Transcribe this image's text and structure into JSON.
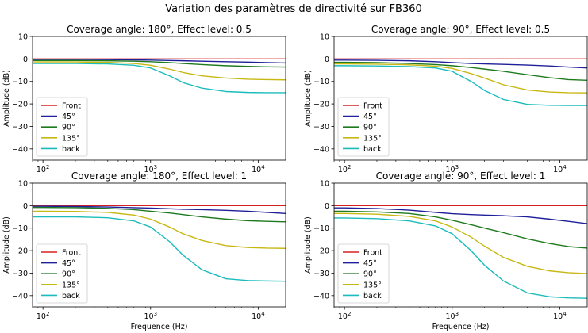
{
  "figure": {
    "suptitle": "Variation des paramètres de directivité sur FB360"
  },
  "chart_data": [
    {
      "type": "line",
      "title": "Coverage angle: 180°, Effect level: 0.5",
      "xlabel": "",
      "ylabel": "Amplitude (dB)",
      "xscale": "log",
      "xlim": [
        80,
        18000
      ],
      "ylim": [
        -45,
        10
      ],
      "yticks": [
        "10",
        "0",
        "−10",
        "−20",
        "−30",
        "−40"
      ],
      "xticks": [
        "10^2",
        "10^3",
        "10^4"
      ],
      "grid": false,
      "legend": "lower-left",
      "x": [
        80,
        100,
        200,
        400,
        700,
        1000,
        1500,
        2000,
        3000,
        5000,
        8000,
        12000,
        18000
      ],
      "series": [
        {
          "name": "Front",
          "color": "#d62020",
          "values": [
            0,
            0,
            0,
            0,
            0,
            0,
            0,
            0,
            0,
            0,
            0,
            0,
            0
          ]
        },
        {
          "name": "45°",
          "color": "#1f1f9a",
          "values": [
            -0.2,
            -0.2,
            -0.2,
            -0.3,
            -0.4,
            -0.5,
            -0.7,
            -0.8,
            -1.0,
            -1.2,
            -1.4,
            -1.6,
            -1.8
          ]
        },
        {
          "name": "90°",
          "color": "#1e7a1e",
          "values": [
            -0.7,
            -0.7,
            -0.7,
            -0.8,
            -1.0,
            -1.2,
            -1.6,
            -2.0,
            -2.5,
            -3.0,
            -3.3,
            -3.5,
            -3.6
          ]
        },
        {
          "name": "135°",
          "color": "#c8b814",
          "values": [
            -1.3,
            -1.3,
            -1.3,
            -1.5,
            -2.0,
            -2.8,
            -4.5,
            -6.0,
            -7.5,
            -8.5,
            -9.0,
            -9.2,
            -9.3
          ]
        },
        {
          "name": "back",
          "color": "#1cbcbc",
          "values": [
            -2.0,
            -2.0,
            -2.0,
            -2.2,
            -2.8,
            -4.0,
            -7.5,
            -10.5,
            -13.0,
            -14.5,
            -14.9,
            -15.0,
            -15.0
          ]
        }
      ]
    },
    {
      "type": "line",
      "title": "Coverage angle: 90°, Effect level: 0.5",
      "xlabel": "",
      "ylabel": "Amplitude (dB)",
      "xscale": "log",
      "xlim": [
        80,
        18000
      ],
      "ylim": [
        -45,
        10
      ],
      "yticks": [
        "10",
        "0",
        "−10",
        "−20",
        "−30",
        "−40"
      ],
      "xticks": [
        "10^2",
        "10^3",
        "10^4"
      ],
      "grid": false,
      "legend": "lower-left",
      "x": [
        80,
        100,
        200,
        400,
        700,
        1000,
        1500,
        2000,
        3000,
        5000,
        8000,
        12000,
        18000
      ],
      "series": [
        {
          "name": "Front",
          "color": "#d62020",
          "values": [
            0,
            0,
            0,
            0,
            0,
            0,
            0,
            0,
            0,
            0,
            0,
            0,
            0
          ]
        },
        {
          "name": "45°",
          "color": "#1f1f9a",
          "values": [
            -0.5,
            -0.5,
            -0.6,
            -0.8,
            -1.2,
            -1.6,
            -2.0,
            -2.2,
            -2.4,
            -2.7,
            -3.1,
            -3.6,
            -4.0
          ]
        },
        {
          "name": "90°",
          "color": "#1e7a1e",
          "values": [
            -1.5,
            -1.5,
            -1.6,
            -2.0,
            -2.5,
            -3.0,
            -3.8,
            -4.5,
            -5.5,
            -7.0,
            -8.3,
            -9.2,
            -9.5
          ]
        },
        {
          "name": "135°",
          "color": "#c8b814",
          "values": [
            -2.2,
            -2.2,
            -2.3,
            -2.6,
            -3.2,
            -4.2,
            -6.5,
            -8.5,
            -11.5,
            -13.8,
            -14.7,
            -15.0,
            -15.1
          ]
        },
        {
          "name": "back",
          "color": "#1cbcbc",
          "values": [
            -3.0,
            -3.0,
            -3.1,
            -3.4,
            -4.0,
            -5.5,
            -10.0,
            -14.0,
            -18.0,
            -20.2,
            -20.6,
            -20.7,
            -20.7
          ]
        }
      ]
    },
    {
      "type": "line",
      "title": "Coverage angle: 180°, Effect level: 1",
      "xlabel": "Frequence (Hz)",
      "ylabel": "Amplitude (dB)",
      "xscale": "log",
      "xlim": [
        80,
        18000
      ],
      "ylim": [
        -45,
        10
      ],
      "yticks": [
        "10",
        "0",
        "−10",
        "−20",
        "−30",
        "−40"
      ],
      "xticks": [
        "10^2",
        "10^3",
        "10^4"
      ],
      "grid": false,
      "legend": "lower-left",
      "x": [
        80,
        100,
        200,
        400,
        700,
        1000,
        1500,
        2000,
        3000,
        5000,
        8000,
        12000,
        18000
      ],
      "series": [
        {
          "name": "Front",
          "color": "#d62020",
          "values": [
            0,
            0,
            0,
            0,
            0,
            0,
            0,
            0,
            0,
            0,
            0,
            0,
            0
          ]
        },
        {
          "name": "45°",
          "color": "#1f1f9a",
          "values": [
            -0.3,
            -0.3,
            -0.4,
            -0.6,
            -0.9,
            -1.1,
            -1.4,
            -1.6,
            -1.8,
            -2.1,
            -2.5,
            -3.0,
            -3.5
          ]
        },
        {
          "name": "90°",
          "color": "#1e7a1e",
          "values": [
            -0.8,
            -0.8,
            -0.9,
            -1.2,
            -1.8,
            -2.5,
            -3.3,
            -4.0,
            -5.0,
            -6.0,
            -6.7,
            -7.0,
            -7.2
          ]
        },
        {
          "name": "135°",
          "color": "#c8b814",
          "values": [
            -2.5,
            -2.5,
            -2.6,
            -3.0,
            -4.2,
            -6.0,
            -9.5,
            -12.5,
            -15.5,
            -17.8,
            -18.6,
            -18.9,
            -19.0
          ]
        },
        {
          "name": "back",
          "color": "#1cbcbc",
          "values": [
            -5.0,
            -5.0,
            -5.0,
            -5.4,
            -6.8,
            -9.5,
            -16.0,
            -22.0,
            -28.5,
            -32.5,
            -33.3,
            -33.5,
            -33.6
          ]
        }
      ]
    },
    {
      "type": "line",
      "title": "Coverage angle: 90°, Effect level: 1",
      "xlabel": "Frequence (Hz)",
      "ylabel": "Amplitude (dB)",
      "xscale": "log",
      "xlim": [
        80,
        18000
      ],
      "ylim": [
        -45,
        10
      ],
      "yticks": [
        "10",
        "0",
        "−10",
        "−20",
        "−30",
        "−40"
      ],
      "xticks": [
        "10^2",
        "10^3",
        "10^4"
      ],
      "grid": false,
      "legend": "lower-left",
      "x": [
        80,
        100,
        200,
        400,
        700,
        1000,
        1500,
        2000,
        3000,
        5000,
        8000,
        12000,
        18000
      ],
      "series": [
        {
          "name": "Front",
          "color": "#d62020",
          "values": [
            0,
            0,
            0,
            0,
            0,
            0,
            0,
            0,
            0,
            0,
            0,
            0,
            0
          ]
        },
        {
          "name": "45°",
          "color": "#1f1f9a",
          "values": [
            -1.0,
            -1.0,
            -1.3,
            -2.0,
            -3.0,
            -3.6,
            -4.0,
            -4.2,
            -4.5,
            -5.0,
            -6.0,
            -7.0,
            -8.0
          ]
        },
        {
          "name": "90°",
          "color": "#1e7a1e",
          "values": [
            -2.5,
            -2.5,
            -2.8,
            -3.5,
            -5.0,
            -6.5,
            -8.5,
            -10.0,
            -12.0,
            -14.8,
            -16.8,
            -18.2,
            -18.9
          ]
        },
        {
          "name": "135°",
          "color": "#c8b814",
          "values": [
            -3.5,
            -3.5,
            -3.8,
            -4.8,
            -6.8,
            -9.5,
            -14.0,
            -18.0,
            -23.0,
            -27.0,
            -29.0,
            -29.8,
            -30.2
          ]
        },
        {
          "name": "back",
          "color": "#1cbcbc",
          "values": [
            -5.5,
            -5.5,
            -5.8,
            -6.8,
            -9.0,
            -12.5,
            -20.0,
            -26.5,
            -33.5,
            -38.8,
            -40.5,
            -41.0,
            -41.2
          ]
        }
      ]
    }
  ]
}
